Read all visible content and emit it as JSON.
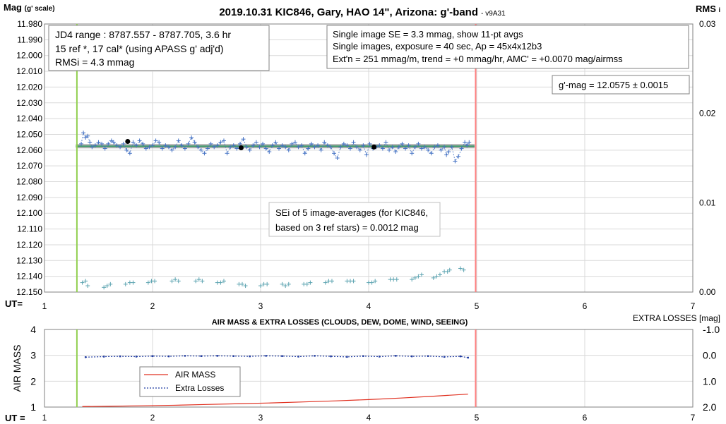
{
  "colors": {
    "series": "#4472c4",
    "check": "#5ba3b0",
    "air_mass": "#e03020",
    "extra_losses": "#1f3aa0",
    "mean_line": "#3f9a6a",
    "mean_band": "#b0b0b0",
    "start_line": "#92d050",
    "end_line": "#ff8080",
    "grid": "#d9d9d9"
  },
  "chart_data": [
    {
      "type": "scatter",
      "title": "2019.10.31 KIC846, Gary, HAO 14\", Arizona: g'-band",
      "title_suffix": "- v9A31",
      "ylabel": "Mag",
      "ylabel_sub": "(g' scale)",
      "y2label": "RMS",
      "y2label_sub": "i",
      "xlabel": "UT=",
      "xlim": [
        1,
        7
      ],
      "ylim": [
        11.98,
        12.15
      ],
      "y_inverted": true,
      "y2lim": [
        0,
        0.03
      ],
      "x_ticks": [
        "1",
        "2",
        "3",
        "4",
        "5",
        "6",
        "7"
      ],
      "y_ticks": [
        "11.980",
        "11.990",
        "12.000",
        "12.010",
        "12.020",
        "12.030",
        "12.040",
        "12.050",
        "12.060",
        "12.070",
        "12.080",
        "12.090",
        "12.100",
        "12.110",
        "12.120",
        "12.130",
        "12.140",
        "12.150"
      ],
      "y2_ticks": [
        "0.00",
        "0.01",
        "0.02",
        "0.03"
      ],
      "grid": true,
      "start_ut": 1.3,
      "end_ut": 4.99,
      "mean_mag": 12.0575,
      "series": [
        {
          "name": "target",
          "x": [
            1.34,
            1.36,
            1.38,
            1.4,
            1.42,
            1.44,
            1.47,
            1.5,
            1.53,
            1.56,
            1.59,
            1.62,
            1.64,
            1.67,
            1.7,
            1.73,
            1.76,
            1.79,
            1.82,
            1.85,
            1.88,
            1.91,
            1.94,
            1.97,
            2.0,
            2.03,
            2.06,
            2.09,
            2.12,
            2.15,
            2.18,
            2.21,
            2.24,
            2.27,
            2.3,
            2.33,
            2.36,
            2.39,
            2.42,
            2.45,
            2.48,
            2.51,
            2.54,
            2.57,
            2.6,
            2.63,
            2.66,
            2.69,
            2.72,
            2.75,
            2.78,
            2.81,
            2.84,
            2.87,
            2.9,
            2.93,
            2.96,
            2.99,
            3.02,
            3.05,
            3.08,
            3.11,
            3.14,
            3.17,
            3.2,
            3.23,
            3.26,
            3.29,
            3.32,
            3.35,
            3.38,
            3.41,
            3.44,
            3.47,
            3.5,
            3.53,
            3.56,
            3.59,
            3.62,
            3.65,
            3.68,
            3.71,
            3.74,
            3.77,
            3.8,
            3.83,
            3.86,
            3.89,
            3.92,
            3.95,
            3.98,
            4.01,
            4.04,
            4.07,
            4.1,
            4.13,
            4.16,
            4.19,
            4.22,
            4.25,
            4.28,
            4.31,
            4.34,
            4.37,
            4.4,
            4.43,
            4.46,
            4.49,
            4.52,
            4.55,
            4.58,
            4.61,
            4.64,
            4.67,
            4.7,
            4.72,
            4.74,
            4.77,
            4.8,
            4.83,
            4.86,
            4.89,
            4.91,
            4.93
          ],
          "y": [
            12.056,
            12.049,
            12.052,
            12.051,
            12.055,
            12.058,
            12.057,
            12.055,
            12.056,
            12.059,
            12.056,
            12.054,
            12.055,
            12.057,
            12.058,
            12.056,
            12.06,
            12.062,
            12.055,
            12.057,
            12.054,
            12.056,
            12.059,
            12.058,
            12.057,
            12.054,
            12.055,
            12.059,
            12.057,
            12.058,
            12.06,
            12.058,
            12.054,
            12.057,
            12.059,
            12.056,
            12.052,
            12.055,
            12.058,
            12.06,
            12.062,
            12.059,
            12.056,
            12.058,
            12.057,
            12.055,
            12.054,
            12.062,
            12.058,
            12.057,
            12.059,
            12.056,
            12.053,
            12.058,
            12.06,
            12.057,
            12.055,
            12.058,
            12.056,
            12.059,
            12.061,
            12.057,
            12.055,
            12.059,
            12.057,
            12.058,
            12.06,
            12.056,
            12.055,
            12.058,
            12.057,
            12.062,
            12.059,
            12.056,
            12.058,
            12.057,
            12.06,
            12.055,
            12.057,
            12.058,
            12.062,
            12.065,
            12.058,
            12.056,
            12.057,
            12.059,
            12.055,
            12.058,
            12.06,
            12.057,
            12.063,
            12.056,
            12.059,
            12.058,
            12.057,
            12.059,
            12.055,
            12.06,
            12.058,
            12.061,
            12.058,
            12.056,
            12.059,
            12.057,
            12.062,
            12.058,
            12.056,
            12.059,
            12.058,
            12.06,
            12.062,
            12.058,
            12.057,
            12.06,
            12.058,
            12.063,
            12.061,
            12.058,
            12.067,
            12.064,
            12.059,
            12.055,
            12.057,
            12.055
          ]
        },
        {
          "name": "5-image averages",
          "x": [
            1.77,
            2.82,
            4.05
          ],
          "y": [
            12.0545,
            12.0585,
            12.058
          ]
        },
        {
          "name": "check star",
          "x": [
            1.35,
            1.38,
            1.4,
            1.55,
            1.58,
            1.61,
            1.75,
            1.79,
            1.82,
            1.96,
            1.99,
            2.02,
            2.18,
            2.21,
            2.24,
            2.4,
            2.43,
            2.46,
            2.6,
            2.63,
            2.66,
            2.8,
            2.83,
            2.86,
            3.0,
            3.03,
            3.06,
            3.2,
            3.23,
            3.26,
            3.4,
            3.43,
            3.46,
            3.6,
            3.63,
            3.66,
            3.8,
            3.83,
            3.86,
            4.0,
            4.03,
            4.06,
            4.2,
            4.23,
            4.26,
            4.4,
            4.43,
            4.46,
            4.49,
            4.6,
            4.63,
            4.66,
            4.7,
            4.73,
            4.75,
            4.85,
            4.88
          ],
          "y": [
            12.144,
            12.143,
            12.146,
            12.147,
            12.146,
            12.145,
            12.145,
            12.144,
            12.144,
            12.144,
            12.143,
            12.143,
            12.143,
            12.142,
            12.143,
            12.143,
            12.142,
            12.143,
            12.144,
            12.144,
            12.143,
            12.145,
            12.145,
            12.146,
            12.146,
            12.145,
            12.145,
            12.145,
            12.146,
            12.145,
            12.145,
            12.145,
            12.144,
            12.144,
            12.143,
            12.143,
            12.143,
            12.143,
            12.143,
            12.144,
            12.144,
            12.143,
            12.142,
            12.142,
            12.142,
            12.142,
            12.141,
            12.14,
            12.139,
            12.141,
            12.14,
            12.139,
            12.137,
            12.137,
            12.136,
            12.135,
            12.136
          ]
        }
      ],
      "boxes": {
        "left": [
          "JD4 range : 8787.557 - 8787.705,  3.6  hr",
          "15 ref *, 17 cal* (using APASS g' adj'd)",
          "RMSi = 4.3 mmag"
        ],
        "right": [
          "Single image SE = 3.3 mmag, show  11-pt avgs",
          "Single images, exposure = 40 sec, Ap = 45x4x12b3",
          "Ext'n = 251 mmag/m, trend =  +0 mmag/hr, AMC' = +0.0070 mag/airmss"
        ],
        "gmag": "g'-mag = 12.0575 ± 0.0015",
        "sei": [
          "SEi of 5 image-averages (for KIC846,",
          "based on 3 ref stars) = 0.0012 mag"
        ]
      }
    },
    {
      "type": "line",
      "title": "AIR MASS & EXTRA LOSSES (CLOUDS, DEW, DOME, WIND, SEEING)",
      "ylabel": "AIR MASS",
      "y2label": "EXTRA LOSSES [mag]",
      "xlabel": "UT =",
      "xlim": [
        1,
        7
      ],
      "ylim": [
        1,
        4
      ],
      "y2lim": [
        -1.0,
        2.0
      ],
      "y2_inverted": true,
      "x_ticks": [
        "1",
        "2",
        "3",
        "4",
        "5",
        "6",
        "7"
      ],
      "y_ticks": [
        "1",
        "2",
        "3",
        "4"
      ],
      "y2_ticks": [
        "2.0",
        "1.0",
        "0.0",
        "-1.0"
      ],
      "grid": true,
      "series": [
        {
          "name": "AIR MASS",
          "x": [
            1.35,
            1.6,
            1.9,
            2.2,
            2.5,
            2.8,
            3.1,
            3.4,
            3.7,
            4.0,
            4.3,
            4.6,
            4.92
          ],
          "y": [
            1.02,
            1.03,
            1.05,
            1.07,
            1.1,
            1.13,
            1.16,
            1.2,
            1.24,
            1.29,
            1.35,
            1.42,
            1.5
          ]
        },
        {
          "name": "Extra Losses",
          "x": [
            1.38,
            1.55,
            1.7,
            1.85,
            2.0,
            2.15,
            2.3,
            2.45,
            2.6,
            2.75,
            2.9,
            3.05,
            3.2,
            3.35,
            3.5,
            3.65,
            3.8,
            3.95,
            4.1,
            4.25,
            4.4,
            4.55,
            4.7,
            4.85,
            4.92
          ],
          "y": [
            0.07,
            0.05,
            0.04,
            0.05,
            0.03,
            0.04,
            0.02,
            0.03,
            0.02,
            0.03,
            0.04,
            0.02,
            0.03,
            0.05,
            0.02,
            0.04,
            0.06,
            0.03,
            0.05,
            0.02,
            0.04,
            0.03,
            0.06,
            0.04,
            0.09
          ]
        }
      ]
    }
  ]
}
